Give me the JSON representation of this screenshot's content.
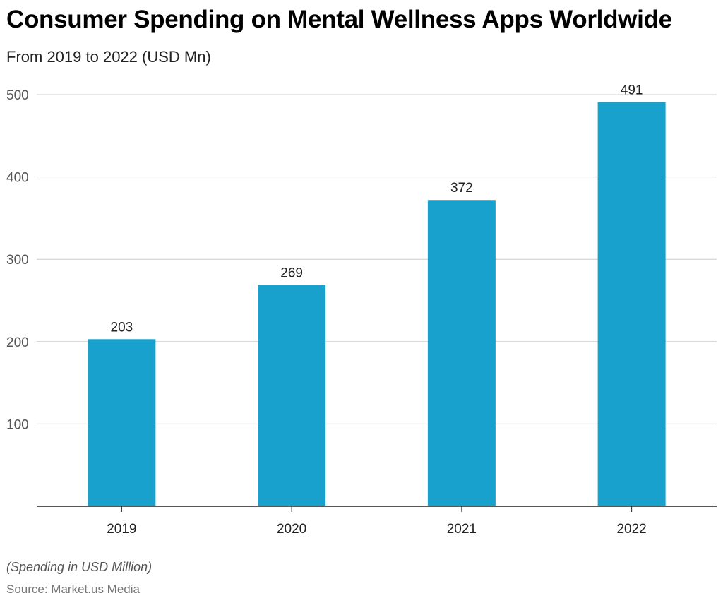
{
  "chart_data": {
    "type": "bar",
    "title": "Consumer Spending on Mental Wellness Apps Worldwide",
    "subtitle": "From 2019 to 2022 (USD Mn)",
    "categories": [
      "2019",
      "2020",
      "2021",
      "2022"
    ],
    "values": [
      203,
      269,
      372,
      491
    ],
    "data_labels": [
      "203",
      "269",
      "372",
      "491"
    ],
    "xlabel": "",
    "ylabel": "",
    "ylim": [
      0,
      500
    ],
    "yticks": [
      100,
      200,
      300,
      400,
      500
    ],
    "grid": true,
    "bar_color": "#18A1CD",
    "note": "(Spending in USD Million)",
    "source": "Source: Market.us Media"
  }
}
